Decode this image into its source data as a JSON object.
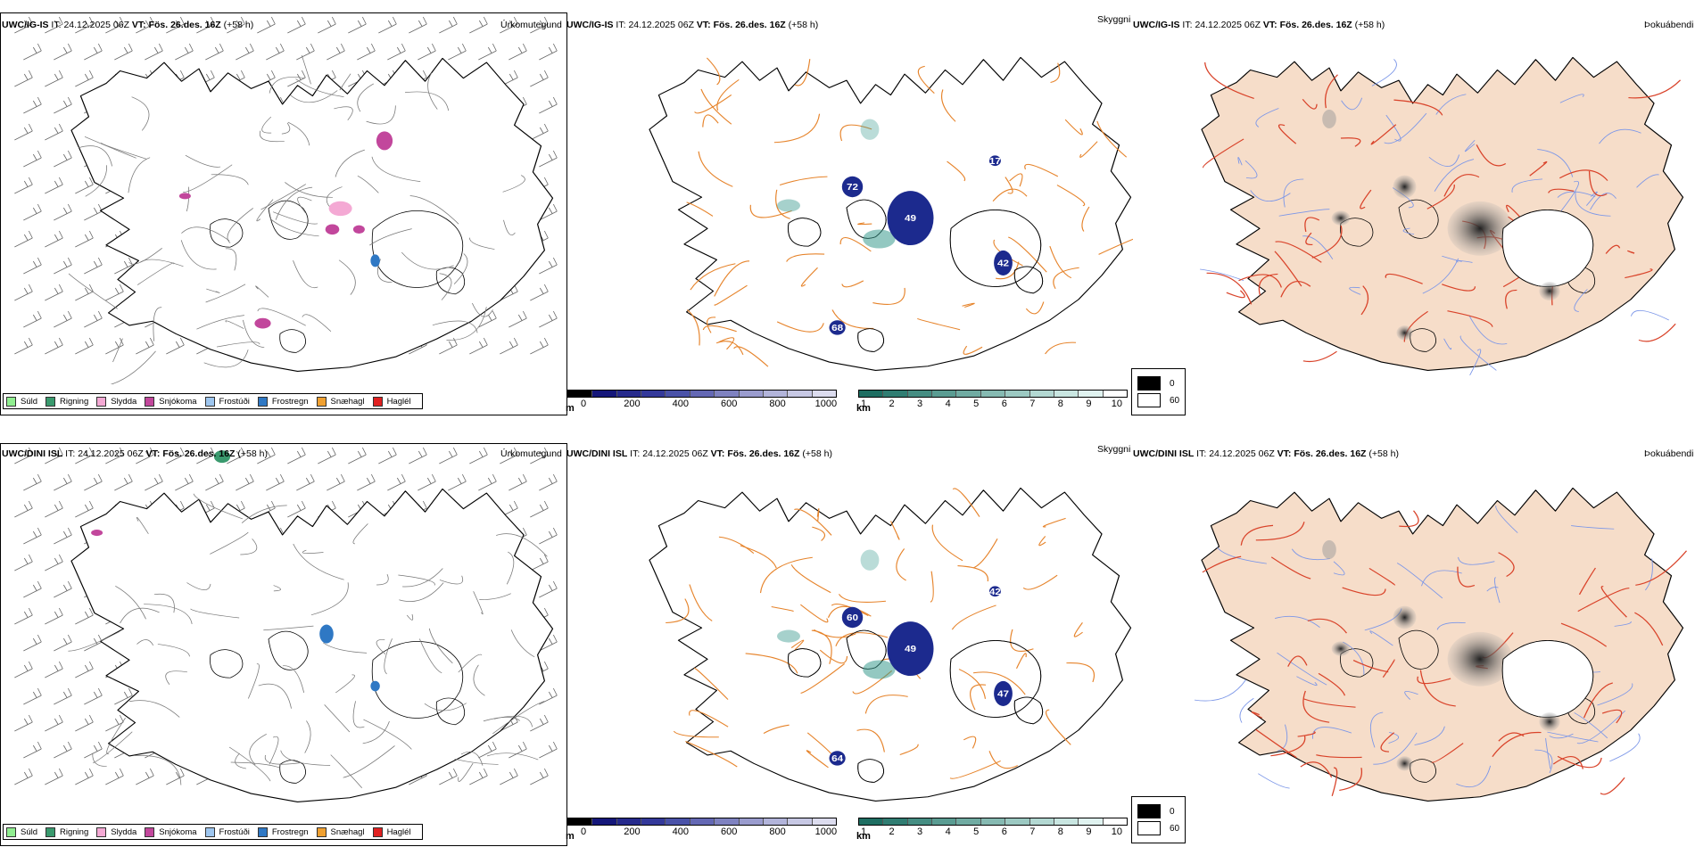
{
  "rows": [
    {
      "model": "UWC/IG-IS",
      "it_label": "IT:",
      "it_value": "24.12.2025 06Z",
      "vt_label": "VT:",
      "vt_value": "Fös. 26.des. 16Z",
      "lead": "(+58 h)",
      "visibility_labels": [
        "49",
        "72",
        "68",
        "17",
        "42"
      ]
    },
    {
      "model": "UWC/DINI ISL",
      "it_label": "IT:",
      "it_value": "24.12.2025 06Z",
      "vt_label": "VT:",
      "vt_value": "Fös. 26.des. 16Z",
      "lead": "(+58 h)",
      "visibility_labels": [
        "49",
        "60",
        "64",
        "42",
        "47"
      ]
    }
  ],
  "panel_titles": {
    "precip": "Úrkomutegund",
    "visibility": "Skyggni",
    "fog": "Þokuábendi"
  },
  "precip_legend": [
    {
      "label": "Súld",
      "color": "#90ee90"
    },
    {
      "label": "Rigning",
      "color": "#3a9a6e"
    },
    {
      "label": "Slydda",
      "color": "#f4a9d4"
    },
    {
      "label": "Snjókoma",
      "color": "#c2479c"
    },
    {
      "label": "Frostúði",
      "color": "#9ec6ef"
    },
    {
      "label": "Frostregn",
      "color": "#2f78c4"
    },
    {
      "label": "Snæhagl",
      "color": "#f0a030"
    },
    {
      "label": "Haglél",
      "color": "#e02020"
    }
  ],
  "cloud_base_bar": {
    "unit": "m",
    "ticks": [
      "0",
      "200",
      "400",
      "600",
      "800",
      "1000"
    ],
    "colors": [
      "#000000",
      "#15177a",
      "#262a8c",
      "#34399a",
      "#4a52a8",
      "#6468b4",
      "#7f82c0",
      "#9a9cce",
      "#b2b4da",
      "#c7c8e4",
      "#dcdcee"
    ]
  },
  "vis_bar": {
    "unit": "km",
    "ticks": [
      "1",
      "2",
      "3",
      "4",
      "5",
      "6",
      "7",
      "8",
      "9",
      "10"
    ],
    "colors": [
      "#1e6e62",
      "#307d72",
      "#458d82",
      "#5a9c92",
      "#70aba2",
      "#86bab2",
      "#9cc9c2",
      "#b3d8d2",
      "#c9e6e1",
      "#e0f3f0",
      "#ffffff"
    ]
  },
  "cloud_legend": [
    {
      "label": "0",
      "color": "#000000"
    },
    {
      "label": "60",
      "color": "#ffffff"
    }
  ],
  "colors": {
    "roads_orange": "#e6832a",
    "roads_red": "#d9432a",
    "rivers_blue": "#7b96e8",
    "land_fog": "#f6ddc9",
    "coast": "#000000",
    "deep_blue": "#1c2a8e",
    "teal": "#3a9a8e"
  }
}
